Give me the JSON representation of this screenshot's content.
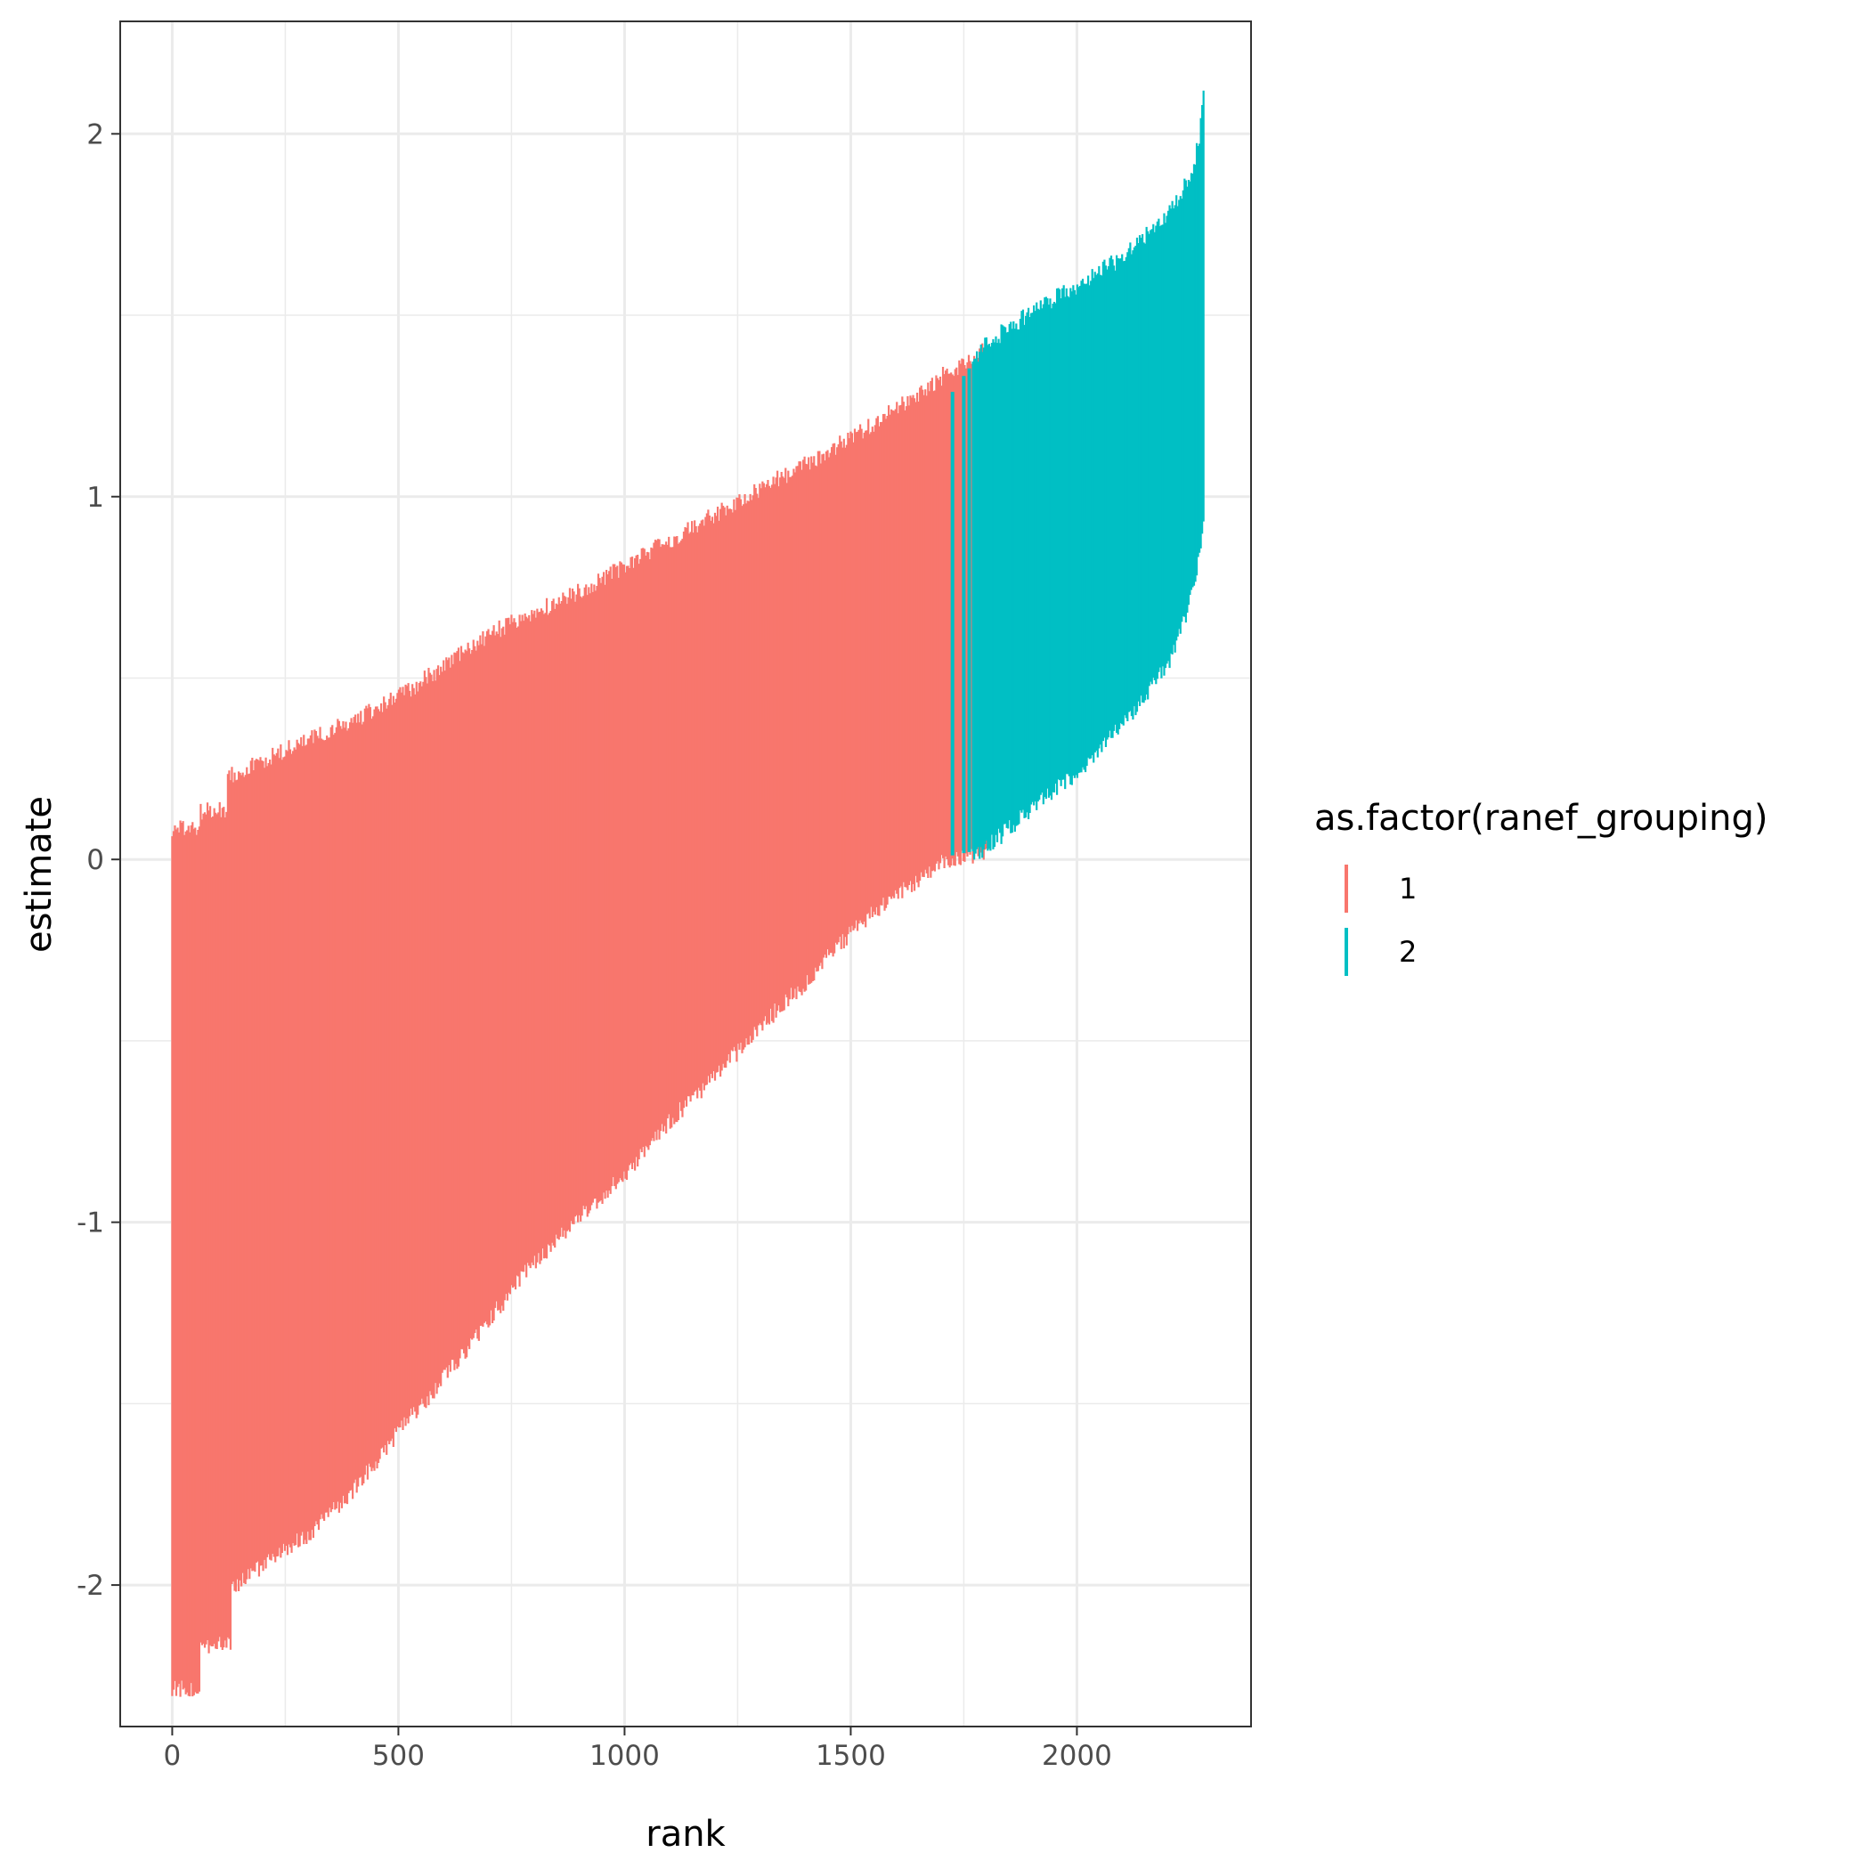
{
  "chart_data": {
    "type": "linerange",
    "xlabel": "rank",
    "ylabel": "estimate",
    "xlim": [
      -115,
      2385
    ],
    "ylim": [
      -2.39,
      2.31
    ],
    "x_ticks": [
      0,
      500,
      1000,
      1500,
      2000
    ],
    "y_ticks": [
      -2,
      -1,
      0,
      1,
      2
    ],
    "x_tick_labels": [
      "0",
      "500",
      "1000",
      "1500",
      "2000"
    ],
    "y_tick_labels": [
      "-2",
      "-1",
      "0",
      "1",
      "2"
    ],
    "grid": true,
    "legend": {
      "title": "as.factor(ranef_grouping)",
      "position": "right",
      "entries": [
        {
          "label": "1",
          "color": "#F8766D"
        },
        {
          "label": "2",
          "color": "#00BFC4"
        }
      ]
    },
    "series": [
      {
        "name": "1",
        "color": "#F8766D",
        "x_range": [
          0,
          1800
        ],
        "upper_profile": {
          "x": [
            0,
            60,
            61,
            120,
            121,
            200,
            300,
            400,
            500,
            600,
            700,
            800,
            900,
            1000,
            1100,
            1200,
            1300,
            1400,
            1500,
            1600,
            1700,
            1800
          ],
          "y": [
            0.08,
            0.09,
            0.13,
            0.14,
            0.23,
            0.27,
            0.33,
            0.38,
            0.45,
            0.53,
            0.62,
            0.68,
            0.74,
            0.81,
            0.88,
            0.95,
            1.02,
            1.09,
            1.16,
            1.24,
            1.33,
            1.41
          ]
        },
        "lower_profile": {
          "x": [
            0,
            60,
            61,
            130,
            131,
            200,
            300,
            400,
            500,
            600,
            700,
            800,
            900,
            1000,
            1100,
            1200,
            1300,
            1400,
            1500,
            1600,
            1700,
            1800
          ],
          "y": [
            -2.29,
            -2.28,
            -2.17,
            -2.16,
            -2.01,
            -1.95,
            -1.86,
            -1.74,
            -1.58,
            -1.43,
            -1.27,
            -1.11,
            -0.99,
            -0.87,
            -0.72,
            -0.6,
            -0.46,
            -0.34,
            -0.2,
            -0.1,
            -0.01,
            0.02
          ]
        }
      },
      {
        "name": "2",
        "color": "#00BFC4",
        "x_range": [
          1720,
          2280
        ],
        "upper_profile": {
          "x": [
            1720,
            1800,
            1900,
            2000,
            2100,
            2200,
            2250,
            2270,
            2280
          ],
          "y": [
            1.28,
            1.42,
            1.51,
            1.58,
            1.66,
            1.77,
            1.88,
            1.98,
            2.1
          ]
        },
        "lower_profile": {
          "x": [
            1720,
            1800,
            1900,
            2000,
            2100,
            2200,
            2250,
            2270,
            2280
          ],
          "y": [
            0.01,
            0.03,
            0.14,
            0.24,
            0.37,
            0.53,
            0.71,
            0.82,
            0.93
          ]
        }
      }
    ]
  }
}
